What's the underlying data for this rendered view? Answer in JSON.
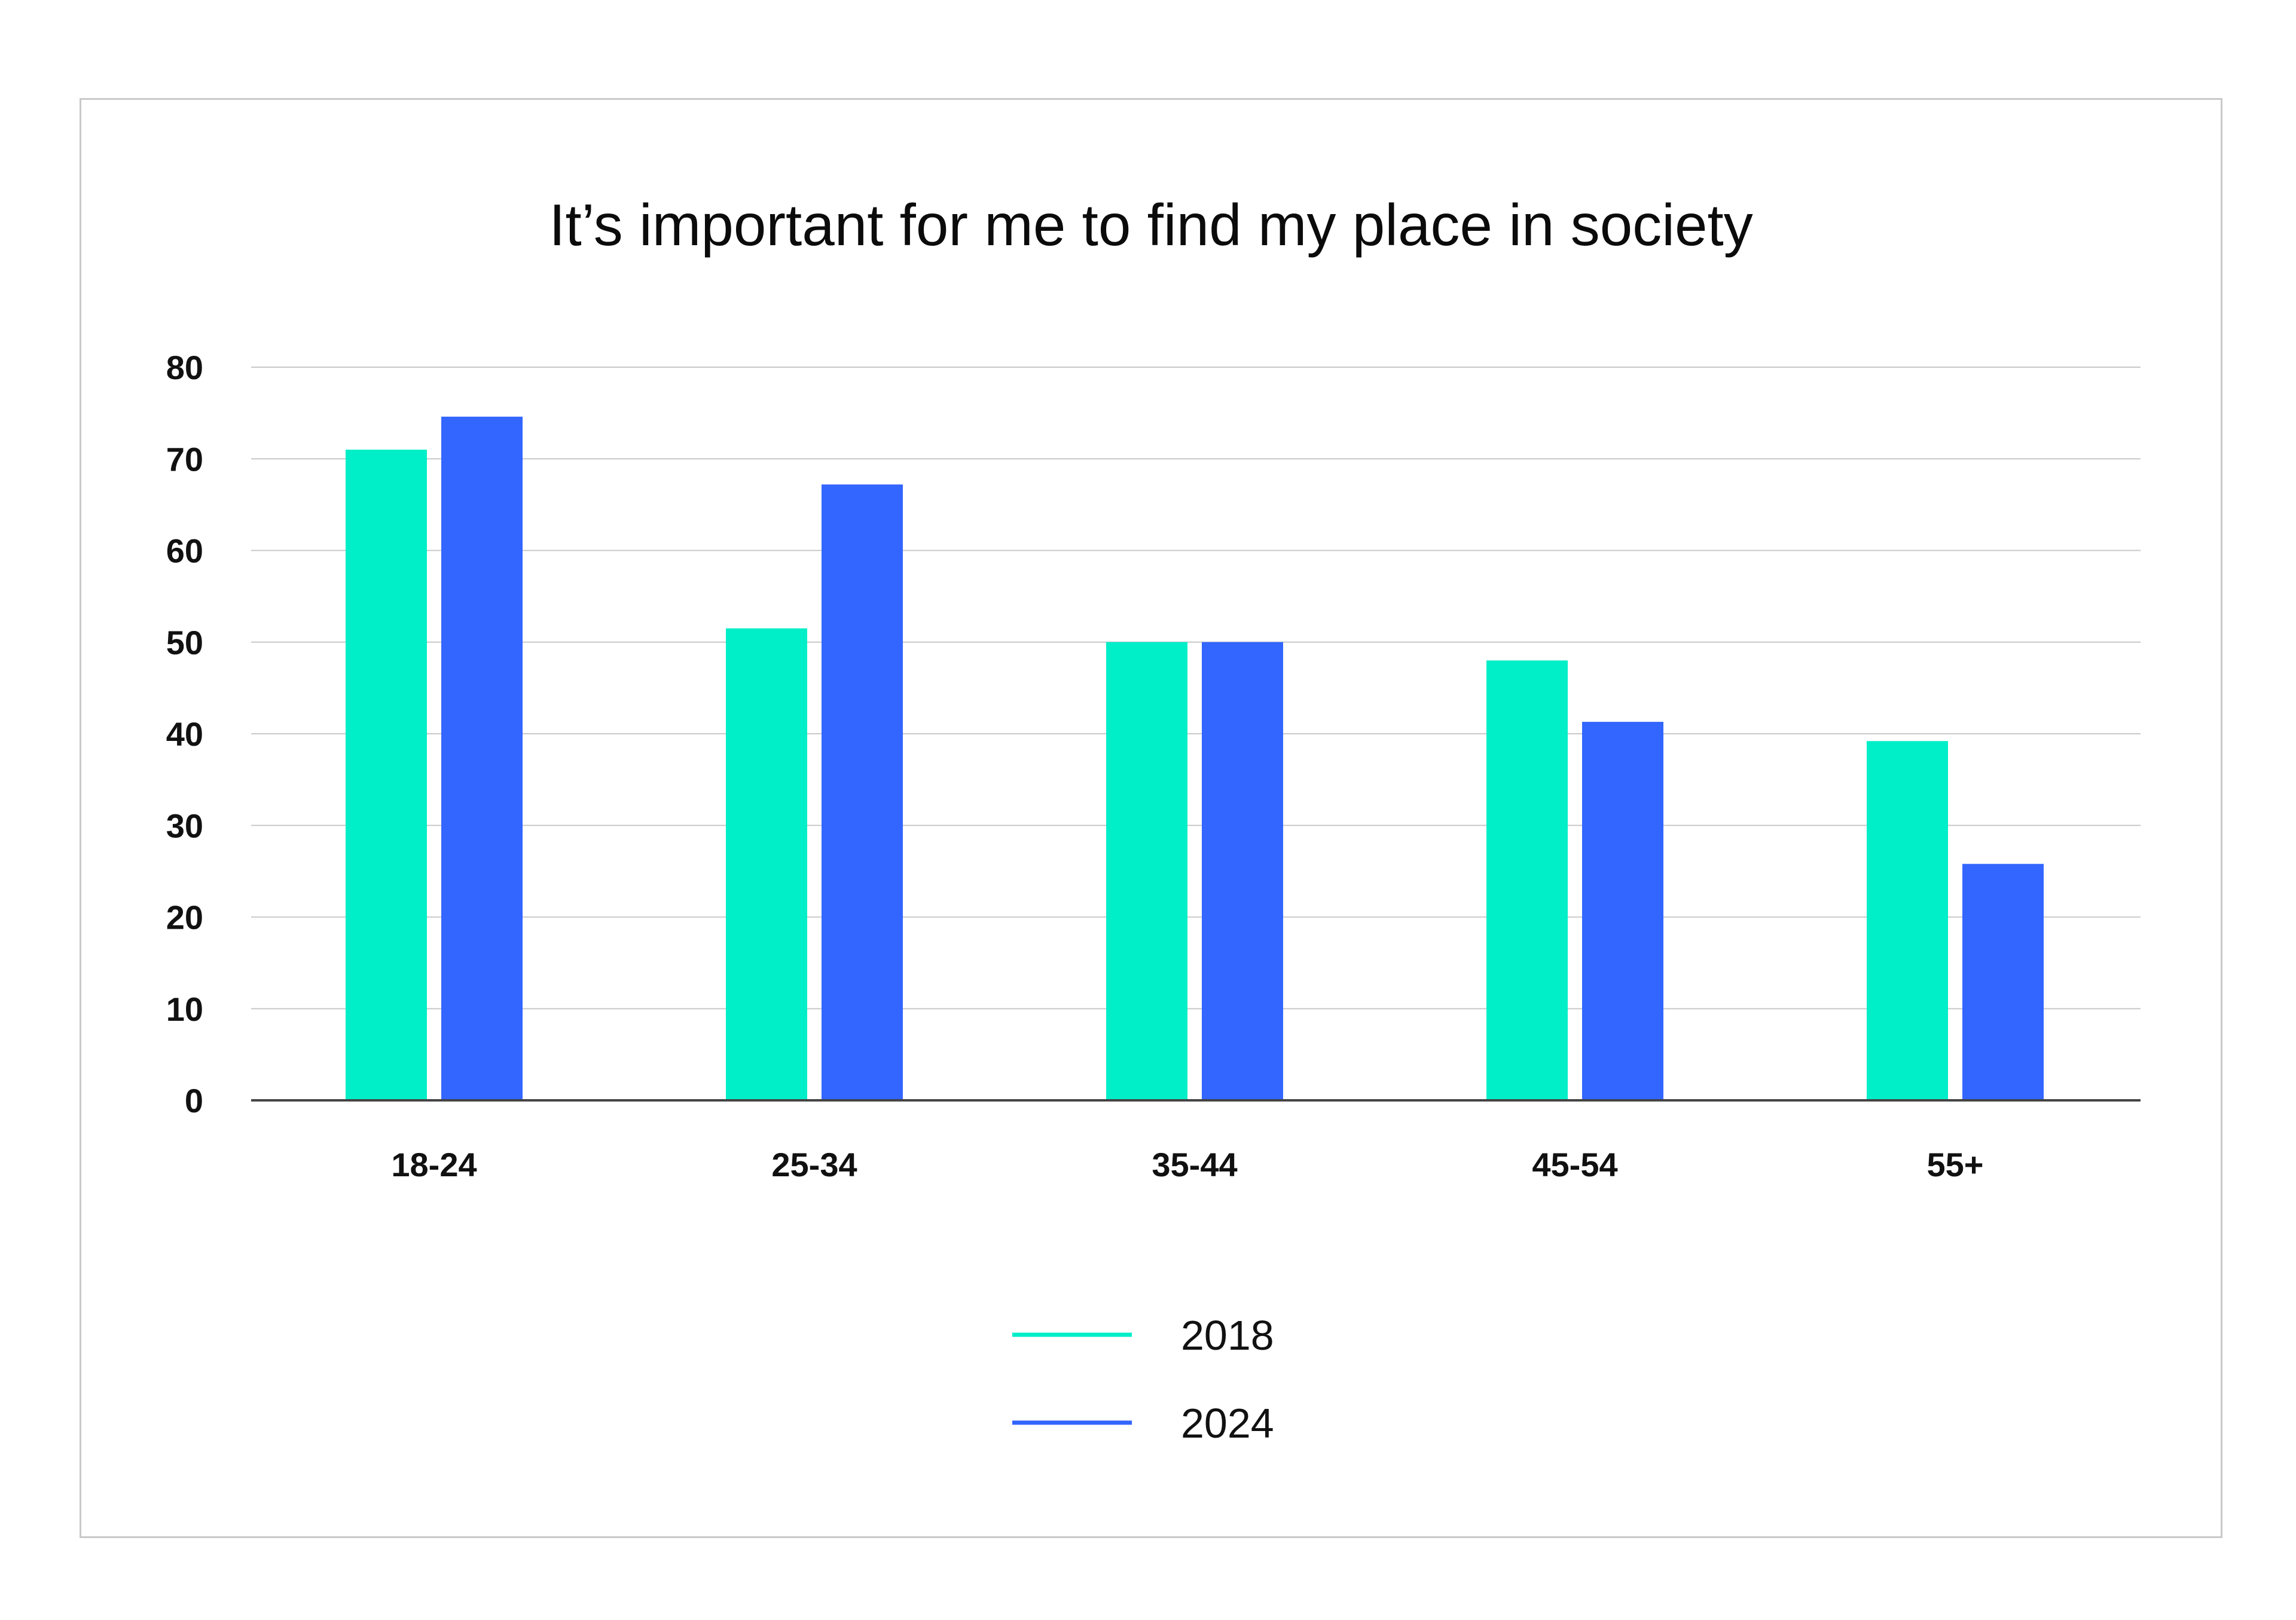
{
  "chart_data": {
    "type": "bar",
    "title": "It’s important for me to find my place in society",
    "categories": [
      "18-24",
      "25-34",
      "35-44",
      "45-54",
      "55+"
    ],
    "series": [
      {
        "name": "2018",
        "color": "#00eec8",
        "values": [
          71,
          51.5,
          50,
          48,
          39.2
        ]
      },
      {
        "name": "2024",
        "color": "#3366ff",
        "values": [
          74.6,
          67.2,
          50,
          41.3,
          25.8
        ]
      }
    ],
    "y_ticks": [
      "0",
      "10",
      "20",
      "30",
      "40",
      "50",
      "60",
      "70",
      "80"
    ],
    "ylim": [
      0,
      80
    ],
    "grid": true,
    "legend_position": "bottom-center",
    "gridline_color": "#c8c8c8",
    "axis_color": "#444444"
  }
}
